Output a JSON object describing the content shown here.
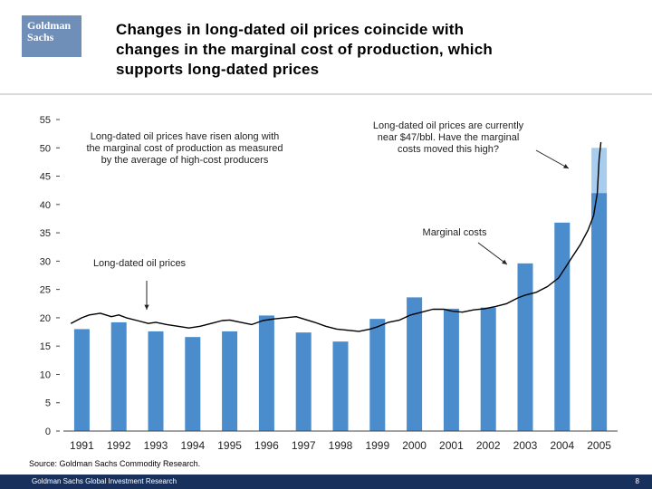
{
  "header": {
    "logo_line1": "Goldman",
    "logo_line2": "Sachs",
    "title_line1": "Changes in long-dated oil prices coincide with",
    "title_line2": "changes in the marginal cost of production, which",
    "title_line3": "supports long-dated prices"
  },
  "source": "Source: Goldman Sachs Commodity Research.",
  "footer": {
    "left": "Goldman Sachs Global Investment Research",
    "page": "8"
  },
  "colors": {
    "bar": "#4a8ccc",
    "bar_light": "#a9cdee",
    "line": "#000000",
    "footer_bg": "#18315c",
    "logo_bg": "#6f8fb8"
  },
  "chart_data": {
    "type": "bar",
    "categories": [
      "1991",
      "1992",
      "1993",
      "1994",
      "1995",
      "1996",
      "1997",
      "1998",
      "1999",
      "2000",
      "2001",
      "2002",
      "2003",
      "2004",
      "2005"
    ],
    "series": [
      {
        "name": "Marginal costs",
        "values": [
          18,
          19.2,
          17.6,
          16.6,
          17.6,
          20.4,
          17.4,
          15.8,
          19.8,
          23.6,
          21.6,
          21.8,
          29.6,
          36.8,
          42
        ]
      },
      {
        "name": "",
        "values": [
          0,
          0,
          0,
          0,
          0,
          0,
          0,
          0,
          0,
          0,
          0,
          0,
          0,
          0,
          50
        ]
      }
    ],
    "line": {
      "name": "Long-dated oil prices",
      "x": [
        1990.7,
        1991.0,
        1991.2,
        1991.5,
        1991.8,
        1992.0,
        1992.2,
        1992.5,
        1992.8,
        1993.0,
        1993.3,
        1993.6,
        1993.9,
        1994.2,
        1994.5,
        1994.8,
        1995.0,
        1995.3,
        1995.6,
        1995.9,
        1996.2,
        1996.5,
        1996.8,
        1997.0,
        1997.3,
        1997.6,
        1997.9,
        1998.2,
        1998.5,
        1998.8,
        1999.0,
        1999.3,
        1999.6,
        1999.9,
        2000.2,
        2000.5,
        2000.8,
        2001.0,
        2001.3,
        2001.6,
        2001.9,
        2002.2,
        2002.5,
        2002.8,
        2003.0,
        2003.3,
        2003.6,
        2003.9,
        2004.1,
        2004.3,
        2004.5,
        2004.7,
        2004.85,
        2004.95,
        2005.0,
        2005.05
      ],
      "y": [
        19.0,
        20.0,
        20.5,
        20.8,
        20.2,
        20.5,
        20.0,
        19.5,
        19.0,
        19.2,
        18.8,
        18.5,
        18.2,
        18.5,
        19.0,
        19.5,
        19.6,
        19.2,
        18.8,
        19.5,
        19.8,
        20.0,
        20.2,
        19.8,
        19.2,
        18.5,
        18.0,
        17.8,
        17.6,
        18.0,
        18.4,
        19.2,
        19.6,
        20.5,
        21.0,
        21.5,
        21.5,
        21.2,
        21.0,
        21.4,
        21.6,
        22.0,
        22.5,
        23.5,
        24.0,
        24.5,
        25.5,
        27.0,
        29.0,
        31.0,
        33.0,
        35.5,
        38.0,
        42.0,
        48.0,
        51.0
      ]
    },
    "ylim": [
      0,
      55
    ],
    "yticks": [
      0,
      5,
      10,
      15,
      20,
      25,
      30,
      35,
      40,
      45,
      50,
      55
    ],
    "annotations": [
      {
        "text": [
          "Long-dated oil prices have risen along with",
          "the marginal cost of production as measured",
          "by the average of high-cost producers"
        ]
      },
      {
        "text": [
          "Long-dated oil prices are currently",
          "near $47/bbl. Have the marginal",
          "costs moved this high?"
        ]
      },
      {
        "text": [
          "Marginal costs"
        ]
      },
      {
        "text": [
          "Long-dated oil prices"
        ]
      }
    ]
  }
}
